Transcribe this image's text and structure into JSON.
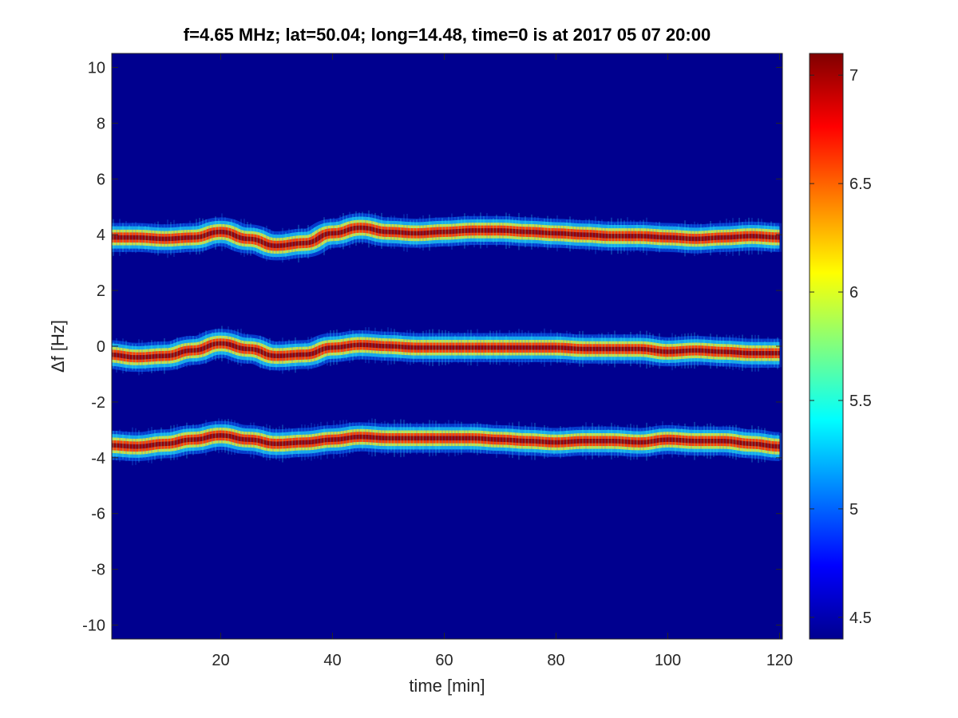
{
  "chart_data": {
    "type": "heatmap",
    "title": "f=4.65 MHz;  lat=50.04; long=14.48, time=0 is at 2017 05 07 20:00",
    "xlabel": "time [min]",
    "ylabel": "Δf [Hz]",
    "xlim": [
      0.5,
      120.5
    ],
    "ylim": [
      -10.5,
      10.5
    ],
    "xticks": [
      20,
      40,
      60,
      80,
      100,
      120
    ],
    "yticks": [
      10,
      8,
      6,
      4,
      2,
      0,
      -2,
      -4,
      -6,
      -8,
      -10
    ],
    "colorbar": {
      "colormap": "jet",
      "limits": [
        4.4,
        7.1
      ],
      "ticks": [
        7,
        6.5,
        6,
        5.5,
        5,
        4.5
      ]
    },
    "grid": false,
    "traces": [
      {
        "time": [
          0,
          5,
          10,
          15,
          20,
          25,
          30,
          35,
          40,
          45,
          50,
          55,
          60,
          65,
          70,
          75,
          80,
          85,
          90,
          95,
          100,
          105,
          110,
          115,
          120
        ],
        "center": [
          3.9,
          3.9,
          3.85,
          3.9,
          4.1,
          3.85,
          3.6,
          3.7,
          4.05,
          4.25,
          4.1,
          4.05,
          4.1,
          4.15,
          4.15,
          4.1,
          4.05,
          4.0,
          3.95,
          3.95,
          3.9,
          3.85,
          3.9,
          3.95,
          3.9
        ]
      },
      {
        "time": [
          0,
          5,
          10,
          15,
          20,
          25,
          30,
          35,
          40,
          45,
          50,
          55,
          60,
          65,
          70,
          75,
          80,
          85,
          90,
          95,
          100,
          105,
          110,
          115,
          120
        ],
        "center": [
          -0.3,
          -0.4,
          -0.35,
          -0.15,
          0.1,
          -0.1,
          -0.35,
          -0.3,
          -0.05,
          0.05,
          0.0,
          -0.05,
          -0.05,
          -0.05,
          -0.05,
          -0.05,
          -0.05,
          -0.1,
          -0.1,
          -0.1,
          -0.2,
          -0.15,
          -0.2,
          -0.25,
          -0.25
        ]
      },
      {
        "time": [
          0,
          5,
          10,
          15,
          20,
          25,
          30,
          35,
          40,
          45,
          50,
          55,
          60,
          65,
          70,
          75,
          80,
          85,
          90,
          95,
          100,
          105,
          110,
          115,
          120
        ],
        "center": [
          -3.55,
          -3.6,
          -3.5,
          -3.35,
          -3.2,
          -3.35,
          -3.5,
          -3.45,
          -3.35,
          -3.25,
          -3.3,
          -3.3,
          -3.3,
          -3.3,
          -3.35,
          -3.4,
          -3.45,
          -3.4,
          -3.4,
          -3.45,
          -3.35,
          -3.4,
          -3.4,
          -3.5,
          -3.6
        ]
      }
    ]
  },
  "colors": {
    "background": "#00008f",
    "axes": "#262626"
  }
}
